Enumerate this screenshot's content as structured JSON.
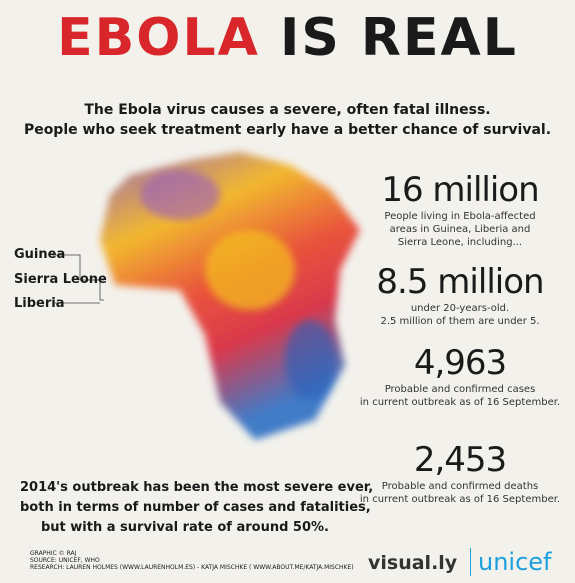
{
  "header": {
    "title_red": "EBOLA",
    "title_black": "IS REAL",
    "intro": [
      "The Ebola virus causes a severe, often fatal illness.",
      "People who seek treatment early have a better chance of survival."
    ]
  },
  "map": {
    "labels": [
      "Guinea",
      "Sierra Leone",
      "Liberia"
    ]
  },
  "stats": [
    {
      "figure": "16 million",
      "text": [
        "People living in Ebola-affected",
        "areas in Guinea, Liberia and",
        "Sierra Leone, including..."
      ]
    },
    {
      "figure": "8.5 million",
      "text": [
        "under 20-years-old.",
        "2.5 million of them are under 5."
      ]
    },
    {
      "figure": "4,963",
      "text": [
        "Probable and confirmed cases",
        "in current outbreak as of 16 September."
      ]
    },
    {
      "figure": "2,453",
      "text": [
        "Probable and confirmed deaths",
        "in current outbreak as of 16 September."
      ]
    }
  ],
  "summary": [
    "2014's outbreak has been the most severe ever,",
    "both in terms of number of cases and fatalities,",
    "but with a survival rate of around 50%."
  ],
  "footer": {
    "credits": [
      "GRAPHIC © RAJ",
      "SOURCE: UNICEF, WHO",
      "RESEARCH: LAUREN HOLMES (WWW.LAURENHOLM.ES) - KATJA MISCHKE ( WWW.ABOUT.ME/KATJA.MISCHKE)"
    ],
    "logo_visually": "visual.ly",
    "logo_unicef": "unicef"
  }
}
